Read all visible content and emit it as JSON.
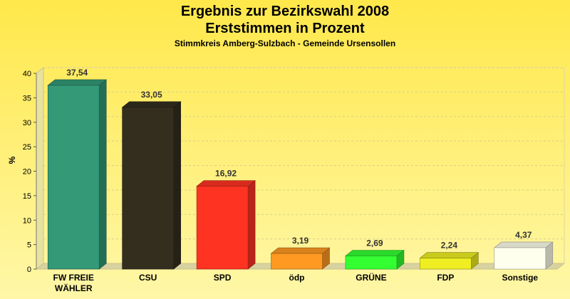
{
  "chart_data": {
    "type": "bar",
    "title": "Ergebnis zur Bezirkswahl 2008",
    "title_line2": "Erststimmen in Prozent",
    "subtitle": "Stimmkreis Amberg-Sulzbach - Gemeinde Ursensollen",
    "ylabel": "%",
    "ylim": [
      0,
      40
    ],
    "yticks": [
      "0",
      "5",
      "10",
      "15",
      "20",
      "25",
      "30",
      "35",
      "40"
    ],
    "grid": true,
    "categories": [
      "FW FREIE WÄHLER",
      "CSU",
      "SPD",
      "ödp",
      "GRÜNE",
      "FDP",
      "Sonstige"
    ],
    "category_lines": [
      [
        "FW FREIE",
        "WÄHLER"
      ],
      [
        "CSU"
      ],
      [
        "SPD"
      ],
      [
        "ödp"
      ],
      [
        "GRÜNE"
      ],
      [
        "FDP"
      ],
      [
        "Sonstige"
      ]
    ],
    "values": [
      37.54,
      33.05,
      16.92,
      3.19,
      2.69,
      2.24,
      4.37
    ],
    "value_labels": [
      "37,54",
      "33,05",
      "16,92",
      "3,19",
      "2,69",
      "2,24",
      "4,37"
    ],
    "colors": [
      "#339977",
      "#332E1E",
      "#FF3322",
      "#FF9922",
      "#33FF33",
      "#EEEE22",
      "#FFFFEE"
    ]
  }
}
